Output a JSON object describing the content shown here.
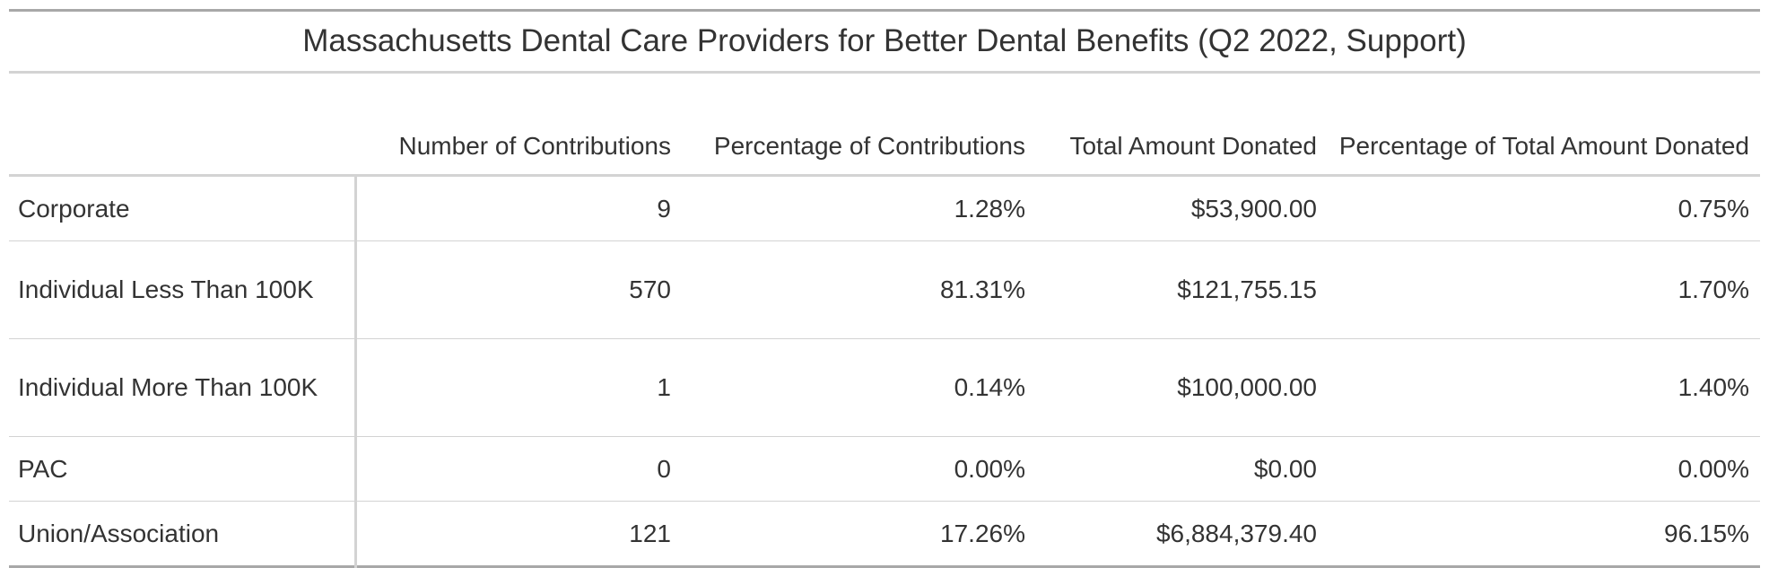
{
  "table": {
    "title": "Massachusetts Dental Care Providers for Better Dental Benefits (Q2 2022, Support)",
    "columns": [
      "",
      "Number of Contributions",
      "Percentage of Contributions",
      "Total Amount Donated",
      "Percentage of Total Amount Donated"
    ],
    "rows": [
      {
        "label": "Corporate",
        "num": "9",
        "pct": "1.28%",
        "amount": "$53,900.00",
        "pct_amount": "0.75%"
      },
      {
        "label": "Individual Less Than 100K",
        "num": "570",
        "pct": "81.31%",
        "amount": "$121,755.15",
        "pct_amount": "1.70%"
      },
      {
        "label": "Individual More Than 100K",
        "num": "1",
        "pct": "0.14%",
        "amount": "$100,000.00",
        "pct_amount": "1.40%"
      },
      {
        "label": "PAC",
        "num": "0",
        "pct": "0.00%",
        "amount": "$0.00",
        "pct_amount": "0.00%"
      },
      {
        "label": "Union/Association",
        "num": "121",
        "pct": "17.26%",
        "amount": "$6,884,379.40",
        "pct_amount": "96.15%"
      }
    ]
  },
  "colors": {
    "text": "#333333",
    "rule_dark": "#a8a8a8",
    "rule_light": "#d3d3d3"
  }
}
